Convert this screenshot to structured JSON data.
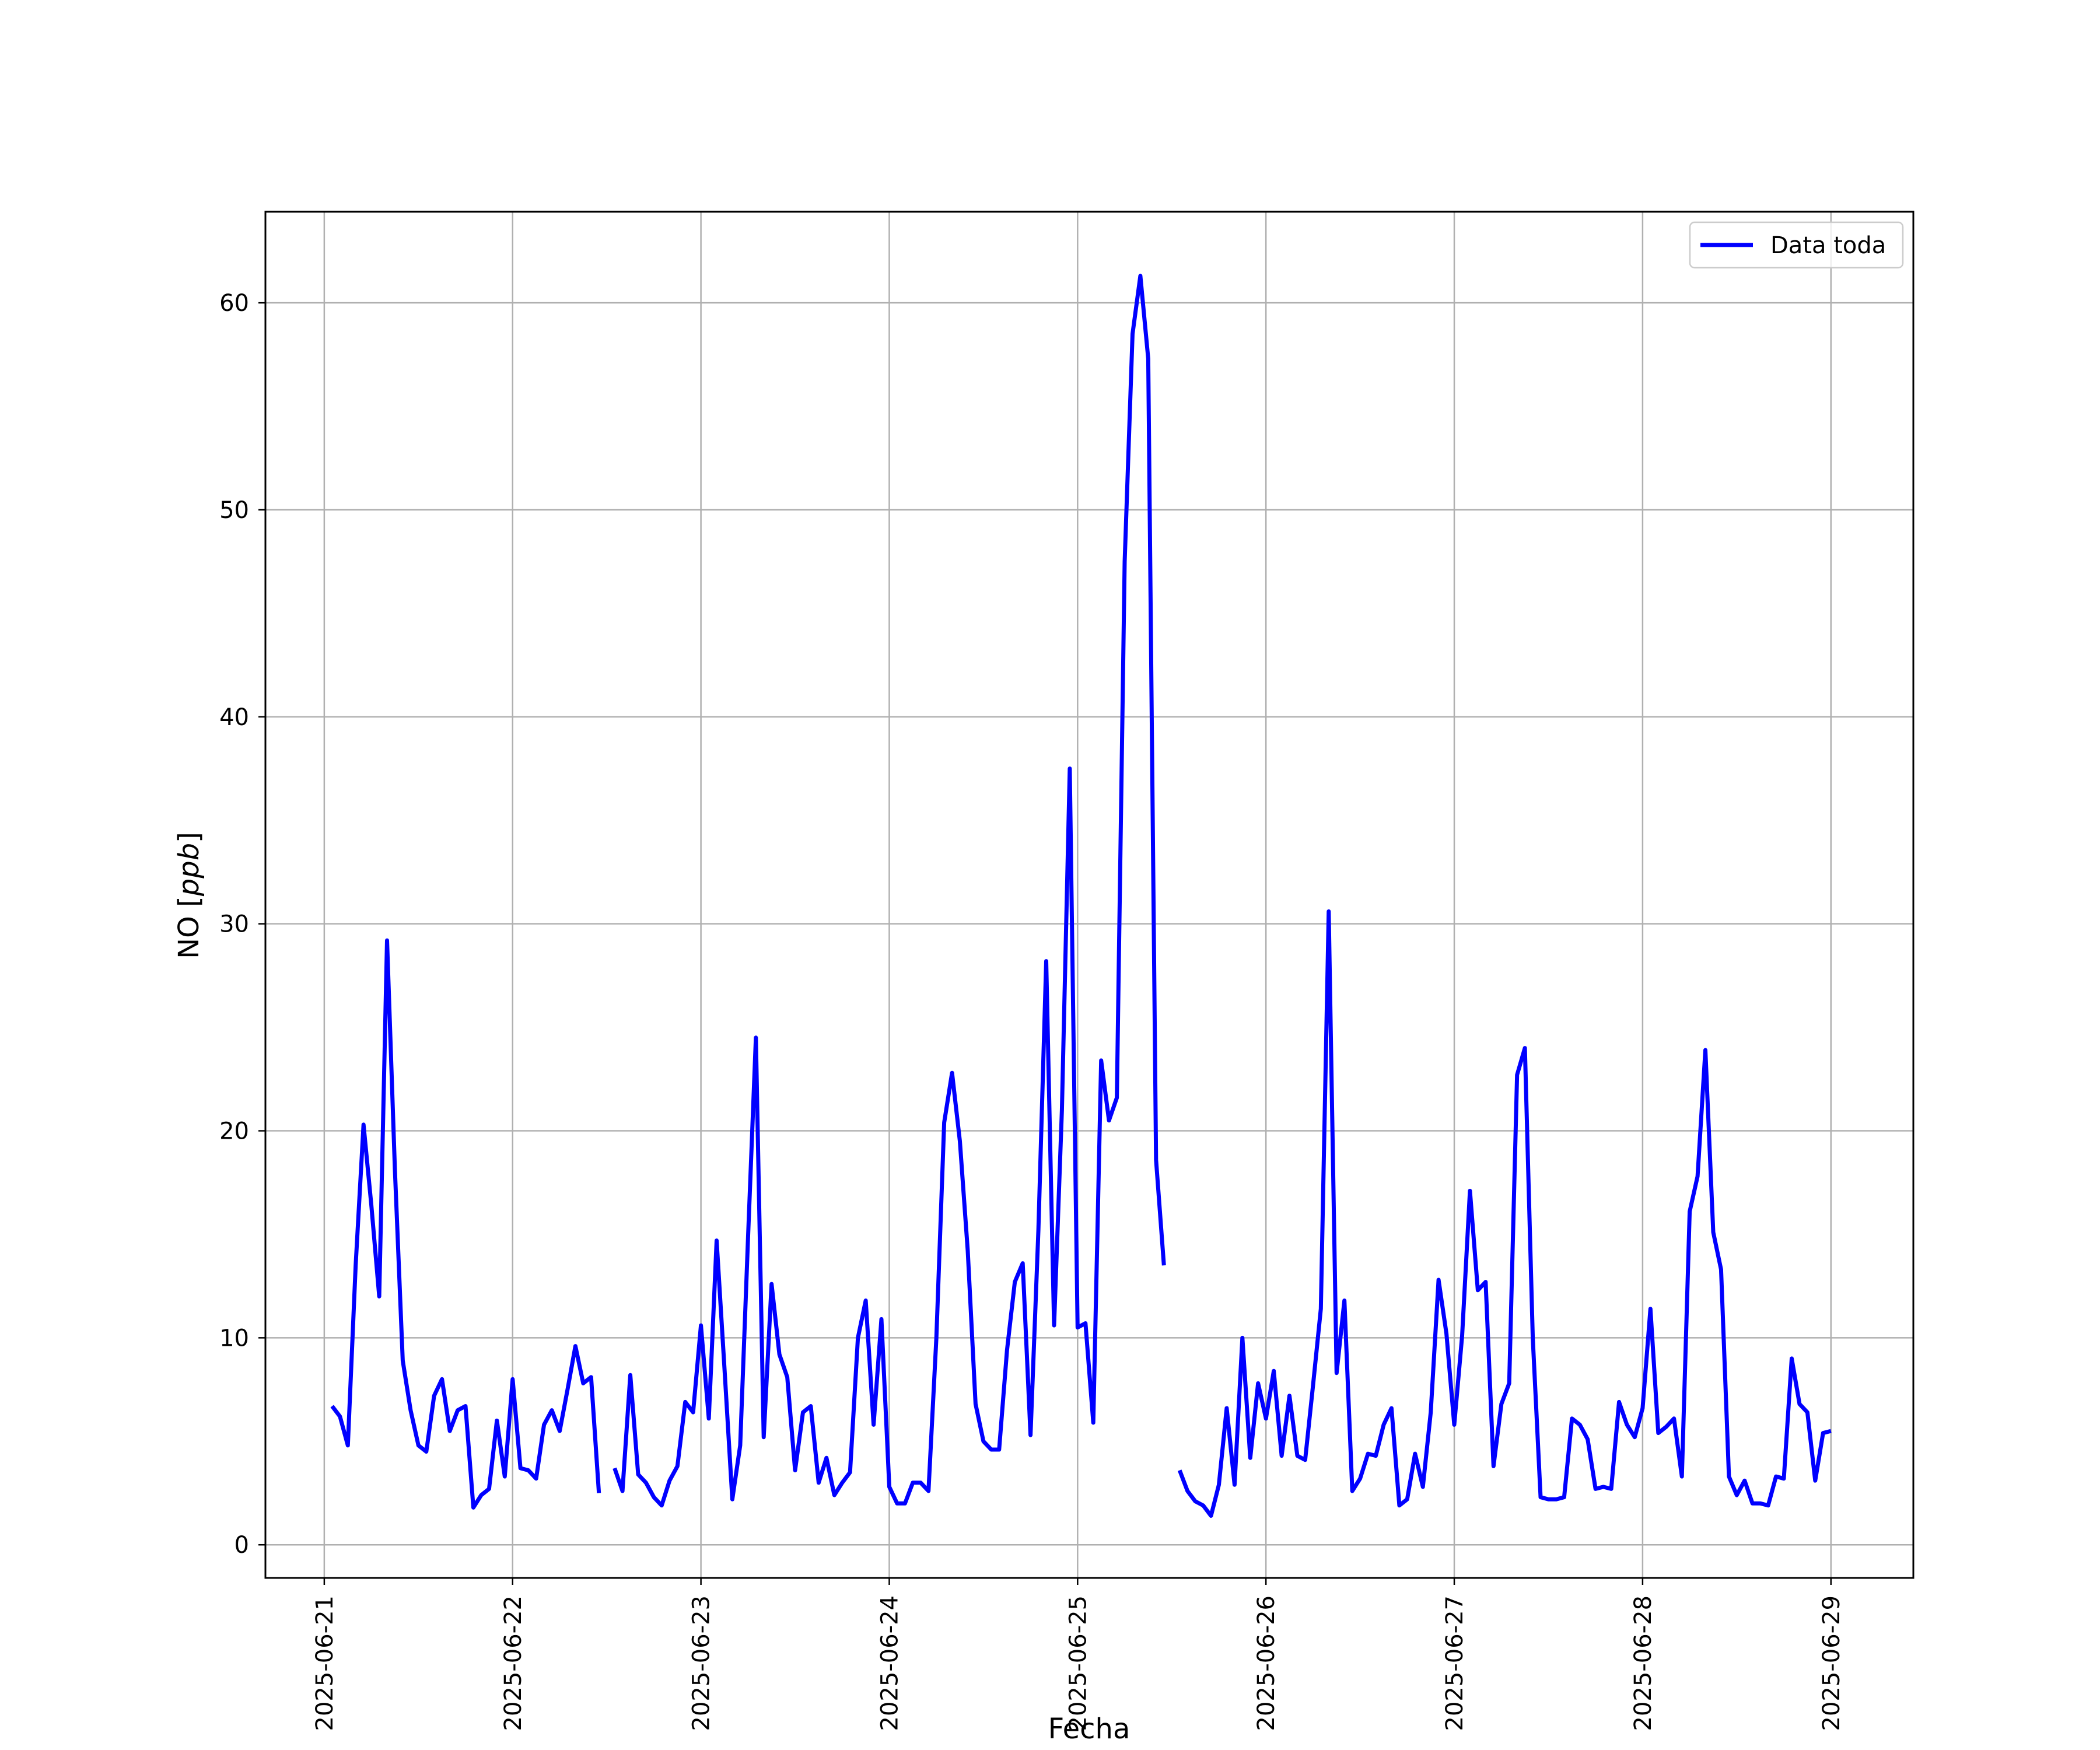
{
  "chart_data": {
    "type": "line",
    "xlabel": "Fecha",
    "ylabel_prefix": "NO [",
    "ylabel_unit": "ppb",
    "ylabel_suffix": "]",
    "x_ticks": [
      "2025-06-21",
      "2025-06-22",
      "2025-06-23",
      "2025-06-24",
      "2025-06-25",
      "2025-06-26",
      "2025-06-27",
      "2025-06-28",
      "2025-06-29"
    ],
    "y_ticks": [
      0,
      10,
      20,
      30,
      40,
      50,
      60
    ],
    "xlim": [
      "2025-06-20T16:30",
      "2025-06-29T10:30"
    ],
    "ylim": [
      -1.6,
      64.4
    ],
    "grid": true,
    "legend_position": "top-right",
    "line_color": "#0000ff",
    "series": [
      {
        "name": "Data toda",
        "color": "#0000ff",
        "points": [
          [
            "2025-06-21T01:00",
            6.7
          ],
          [
            "2025-06-21T02:00",
            6.2
          ],
          [
            "2025-06-21T03:00",
            4.8
          ],
          [
            "2025-06-21T04:00",
            13.5
          ],
          [
            "2025-06-21T05:00",
            20.3
          ],
          [
            "2025-06-21T06:00",
            16.4
          ],
          [
            "2025-06-21T07:00",
            12.0
          ],
          [
            "2025-06-21T08:00",
            29.2
          ],
          [
            "2025-06-21T09:00",
            18.1
          ],
          [
            "2025-06-21T10:00",
            8.9
          ],
          [
            "2025-06-21T11:00",
            6.5
          ],
          [
            "2025-06-21T12:00",
            4.8
          ],
          [
            "2025-06-21T13:00",
            4.5
          ],
          [
            "2025-06-21T14:00",
            7.2
          ],
          [
            "2025-06-21T15:00",
            8.0
          ],
          [
            "2025-06-21T16:00",
            5.5
          ],
          [
            "2025-06-21T17:00",
            6.5
          ],
          [
            "2025-06-21T18:00",
            6.7
          ],
          [
            "2025-06-21T19:00",
            1.8
          ],
          [
            "2025-06-21T20:00",
            2.4
          ],
          [
            "2025-06-21T21:00",
            2.7
          ],
          [
            "2025-06-21T22:00",
            6.0
          ],
          [
            "2025-06-21T23:00",
            3.3
          ],
          [
            "2025-06-22T00:00",
            8.0
          ],
          [
            "2025-06-22T01:00",
            3.7
          ],
          [
            "2025-06-22T02:00",
            3.6
          ],
          [
            "2025-06-22T03:00",
            3.2
          ],
          [
            "2025-06-22T04:00",
            5.8
          ],
          [
            "2025-06-22T05:00",
            6.5
          ],
          [
            "2025-06-22T06:00",
            5.5
          ],
          [
            "2025-06-22T07:00",
            7.5
          ],
          [
            "2025-06-22T08:00",
            9.6
          ],
          [
            "2025-06-22T09:00",
            7.8
          ],
          [
            "2025-06-22T10:00",
            8.1
          ],
          [
            "2025-06-22T11:00",
            2.5
          ],
          [
            "2025-06-22T12:00",
            null
          ],
          [
            "2025-06-22T13:00",
            3.7
          ],
          [
            "2025-06-22T14:00",
            2.6
          ],
          [
            "2025-06-22T15:00",
            8.2
          ],
          [
            "2025-06-22T16:00",
            3.4
          ],
          [
            "2025-06-22T17:00",
            3.0
          ],
          [
            "2025-06-22T18:00",
            2.3
          ],
          [
            "2025-06-22T19:00",
            1.9
          ],
          [
            "2025-06-22T20:00",
            3.1
          ],
          [
            "2025-06-22T21:00",
            3.8
          ],
          [
            "2025-06-22T22:00",
            6.9
          ],
          [
            "2025-06-22T23:00",
            6.4
          ],
          [
            "2025-06-23T00:00",
            10.6
          ],
          [
            "2025-06-23T01:00",
            6.1
          ],
          [
            "2025-06-23T02:00",
            14.7
          ],
          [
            "2025-06-23T03:00",
            8.5
          ],
          [
            "2025-06-23T04:00",
            2.2
          ],
          [
            "2025-06-23T05:00",
            4.8
          ],
          [
            "2025-06-23T06:00",
            14.8
          ],
          [
            "2025-06-23T07:00",
            24.5
          ],
          [
            "2025-06-23T08:00",
            5.2
          ],
          [
            "2025-06-23T09:00",
            12.6
          ],
          [
            "2025-06-23T10:00",
            9.2
          ],
          [
            "2025-06-23T11:00",
            8.1
          ],
          [
            "2025-06-23T12:00",
            3.6
          ],
          [
            "2025-06-23T13:00",
            6.4
          ],
          [
            "2025-06-23T14:00",
            6.7
          ],
          [
            "2025-06-23T15:00",
            3.0
          ],
          [
            "2025-06-23T16:00",
            4.2
          ],
          [
            "2025-06-23T17:00",
            2.4
          ],
          [
            "2025-06-23T18:00",
            3.0
          ],
          [
            "2025-06-23T19:00",
            3.5
          ],
          [
            "2025-06-23T20:00",
            10.0
          ],
          [
            "2025-06-23T21:00",
            11.8
          ],
          [
            "2025-06-23T22:00",
            5.8
          ],
          [
            "2025-06-23T23:00",
            10.9
          ],
          [
            "2025-06-24T00:00",
            2.8
          ],
          [
            "2025-06-24T01:00",
            2.0
          ],
          [
            "2025-06-24T02:00",
            2.0
          ],
          [
            "2025-06-24T03:00",
            3.0
          ],
          [
            "2025-06-24T04:00",
            3.0
          ],
          [
            "2025-06-24T05:00",
            2.6
          ],
          [
            "2025-06-24T06:00",
            10.0
          ],
          [
            "2025-06-24T07:00",
            20.4
          ],
          [
            "2025-06-24T08:00",
            22.8
          ],
          [
            "2025-06-24T09:00",
            19.5
          ],
          [
            "2025-06-24T10:00",
            14.2
          ],
          [
            "2025-06-24T11:00",
            6.8
          ],
          [
            "2025-06-24T12:00",
            5.0
          ],
          [
            "2025-06-24T13:00",
            4.6
          ],
          [
            "2025-06-24T14:00",
            4.6
          ],
          [
            "2025-06-24T15:00",
            9.4
          ],
          [
            "2025-06-24T16:00",
            12.7
          ],
          [
            "2025-06-24T17:00",
            13.6
          ],
          [
            "2025-06-24T18:00",
            5.3
          ],
          [
            "2025-06-24T19:00",
            15.2
          ],
          [
            "2025-06-24T20:00",
            28.2
          ],
          [
            "2025-06-24T21:00",
            10.6
          ],
          [
            "2025-06-24T22:00",
            21.0
          ],
          [
            "2025-06-24T23:00",
            37.5
          ],
          [
            "2025-06-25T00:00",
            10.5
          ],
          [
            "2025-06-25T01:00",
            10.7
          ],
          [
            "2025-06-25T02:00",
            5.9
          ],
          [
            "2025-06-25T03:00",
            23.4
          ],
          [
            "2025-06-25T04:00",
            20.5
          ],
          [
            "2025-06-25T05:00",
            21.6
          ],
          [
            "2025-06-25T06:00",
            47.5
          ],
          [
            "2025-06-25T07:00",
            58.5
          ],
          [
            "2025-06-25T08:00",
            61.3
          ],
          [
            "2025-06-25T09:00",
            57.3
          ],
          [
            "2025-06-25T10:00",
            18.6
          ],
          [
            "2025-06-25T11:00",
            13.5
          ],
          [
            "2025-06-25T12:00",
            null
          ],
          [
            "2025-06-25T13:00",
            3.6
          ],
          [
            "2025-06-25T14:00",
            2.6
          ],
          [
            "2025-06-25T15:00",
            2.1
          ],
          [
            "2025-06-25T16:00",
            1.9
          ],
          [
            "2025-06-25T17:00",
            1.4
          ],
          [
            "2025-06-25T18:00",
            2.9
          ],
          [
            "2025-06-25T19:00",
            6.6
          ],
          [
            "2025-06-25T20:00",
            2.9
          ],
          [
            "2025-06-25T21:00",
            10.0
          ],
          [
            "2025-06-25T22:00",
            4.2
          ],
          [
            "2025-06-25T23:00",
            7.8
          ],
          [
            "2025-06-26T00:00",
            6.1
          ],
          [
            "2025-06-26T01:00",
            8.4
          ],
          [
            "2025-06-26T02:00",
            4.3
          ],
          [
            "2025-06-26T03:00",
            7.2
          ],
          [
            "2025-06-26T04:00",
            4.3
          ],
          [
            "2025-06-26T05:00",
            4.1
          ],
          [
            "2025-06-26T06:00",
            7.7
          ],
          [
            "2025-06-26T07:00",
            11.4
          ],
          [
            "2025-06-26T08:00",
            30.6
          ],
          [
            "2025-06-26T09:00",
            8.3
          ],
          [
            "2025-06-26T10:00",
            11.8
          ],
          [
            "2025-06-26T11:00",
            2.6
          ],
          [
            "2025-06-26T12:00",
            3.2
          ],
          [
            "2025-06-26T13:00",
            4.4
          ],
          [
            "2025-06-26T14:00",
            4.3
          ],
          [
            "2025-06-26T15:00",
            5.8
          ],
          [
            "2025-06-26T16:00",
            6.6
          ],
          [
            "2025-06-26T17:00",
            1.9
          ],
          [
            "2025-06-26T18:00",
            2.2
          ],
          [
            "2025-06-26T19:00",
            4.4
          ],
          [
            "2025-06-26T20:00",
            2.8
          ],
          [
            "2025-06-26T21:00",
            6.4
          ],
          [
            "2025-06-26T22:00",
            12.8
          ],
          [
            "2025-06-26T23:00",
            10.2
          ],
          [
            "2025-06-27T00:00",
            5.8
          ],
          [
            "2025-06-27T01:00",
            10.1
          ],
          [
            "2025-06-27T02:00",
            17.1
          ],
          [
            "2025-06-27T03:00",
            12.3
          ],
          [
            "2025-06-27T04:00",
            12.7
          ],
          [
            "2025-06-27T05:00",
            3.8
          ],
          [
            "2025-06-27T06:00",
            6.8
          ],
          [
            "2025-06-27T07:00",
            7.8
          ],
          [
            "2025-06-27T08:00",
            22.7
          ],
          [
            "2025-06-27T09:00",
            24.0
          ],
          [
            "2025-06-27T10:00",
            10.0
          ],
          [
            "2025-06-27T11:00",
            2.3
          ],
          [
            "2025-06-27T12:00",
            2.2
          ],
          [
            "2025-06-27T13:00",
            2.2
          ],
          [
            "2025-06-27T14:00",
            2.3
          ],
          [
            "2025-06-27T15:00",
            6.1
          ],
          [
            "2025-06-27T16:00",
            5.8
          ],
          [
            "2025-06-27T17:00",
            5.1
          ],
          [
            "2025-06-27T18:00",
            2.7
          ],
          [
            "2025-06-27T19:00",
            2.8
          ],
          [
            "2025-06-27T20:00",
            2.7
          ],
          [
            "2025-06-27T21:00",
            6.9
          ],
          [
            "2025-06-27T22:00",
            5.8
          ],
          [
            "2025-06-27T23:00",
            5.2
          ],
          [
            "2025-06-28T00:00",
            6.6
          ],
          [
            "2025-06-28T01:00",
            11.4
          ],
          [
            "2025-06-28T02:00",
            5.4
          ],
          [
            "2025-06-28T03:00",
            5.7
          ],
          [
            "2025-06-28T04:00",
            6.1
          ],
          [
            "2025-06-28T05:00",
            3.3
          ],
          [
            "2025-06-28T06:00",
            16.1
          ],
          [
            "2025-06-28T07:00",
            17.8
          ],
          [
            "2025-06-28T08:00",
            23.9
          ],
          [
            "2025-06-28T09:00",
            15.1
          ],
          [
            "2025-06-28T10:00",
            13.3
          ],
          [
            "2025-06-28T11:00",
            3.3
          ],
          [
            "2025-06-28T12:00",
            2.4
          ],
          [
            "2025-06-28T13:00",
            3.1
          ],
          [
            "2025-06-28T14:00",
            2.0
          ],
          [
            "2025-06-28T15:00",
            2.0
          ],
          [
            "2025-06-28T16:00",
            1.9
          ],
          [
            "2025-06-28T17:00",
            3.3
          ],
          [
            "2025-06-28T18:00",
            3.2
          ],
          [
            "2025-06-28T19:00",
            9.0
          ],
          [
            "2025-06-28T20:00",
            6.8
          ],
          [
            "2025-06-28T21:00",
            6.4
          ],
          [
            "2025-06-28T22:00",
            3.1
          ],
          [
            "2025-06-28T23:00",
            5.4
          ],
          [
            "2025-06-29T00:00",
            5.5
          ]
        ]
      }
    ]
  }
}
